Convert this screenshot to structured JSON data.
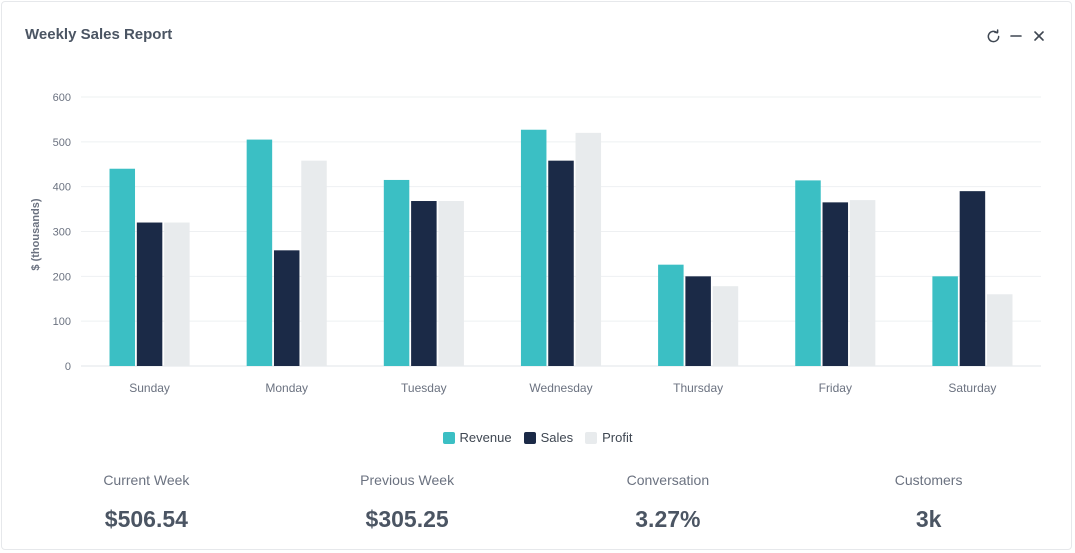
{
  "header": {
    "title": "Weekly Sales Report",
    "actions": [
      {
        "icon": "refresh-icon"
      },
      {
        "icon": "minimize-icon"
      },
      {
        "icon": "close-icon"
      }
    ]
  },
  "colors": {
    "revenue": "#3bbfc4",
    "sales": "#1b2a47",
    "profit": "#e8ebed",
    "grid": "#eef0f2",
    "axis_text": "#6b7280"
  },
  "legend": {
    "items": [
      {
        "label": "Revenue",
        "color": "#3bbfc4"
      },
      {
        "label": "Sales",
        "color": "#1b2a47"
      },
      {
        "label": "Profit",
        "color": "#e8ebed"
      }
    ]
  },
  "chart_data": {
    "type": "bar",
    "ylabel": "$ (thousands)",
    "xlabel": "",
    "ylim": [
      0,
      600
    ],
    "yticks": [
      0,
      100,
      200,
      300,
      400,
      500,
      600
    ],
    "categories": [
      "Sunday",
      "Monday",
      "Tuesday",
      "Wednesday",
      "Thursday",
      "Friday",
      "Saturday"
    ],
    "series": [
      {
        "name": "Revenue",
        "color": "#3bbfc4",
        "values": [
          440,
          505,
          415,
          527,
          226,
          414,
          200
        ]
      },
      {
        "name": "Sales",
        "color": "#1b2a47",
        "values": [
          320,
          258,
          368,
          458,
          200,
          365,
          390
        ]
      },
      {
        "name": "Profit",
        "color": "#e8ebed",
        "values": [
          320,
          458,
          368,
          520,
          178,
          370,
          160
        ]
      }
    ],
    "grid": true,
    "legend_position": "bottom-center"
  },
  "stats": [
    {
      "label": "Current Week",
      "value": "$506.54"
    },
    {
      "label": "Previous Week",
      "value": "$305.25"
    },
    {
      "label": "Conversation",
      "value": "3.27%"
    },
    {
      "label": "Customers",
      "value": "3k"
    }
  ]
}
